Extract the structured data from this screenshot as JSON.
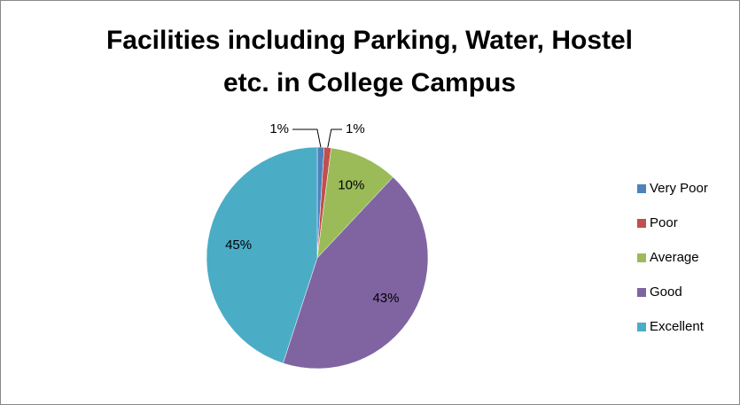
{
  "chart_data": {
    "type": "pie",
    "title": "Facilities including Parking, Water, Hostel etc. in College Campus",
    "categories": [
      "Very Poor",
      "Poor",
      "Average",
      "Good",
      "Excellent"
    ],
    "values": [
      1,
      1,
      10,
      43,
      45
    ],
    "value_labels": [
      "1%",
      "1%",
      "10%",
      "43%",
      "45%"
    ],
    "colors": [
      "#4f81bd",
      "#c0504d",
      "#9bbb59",
      "#8064a2",
      "#4bacc6"
    ],
    "legend": "right"
  }
}
